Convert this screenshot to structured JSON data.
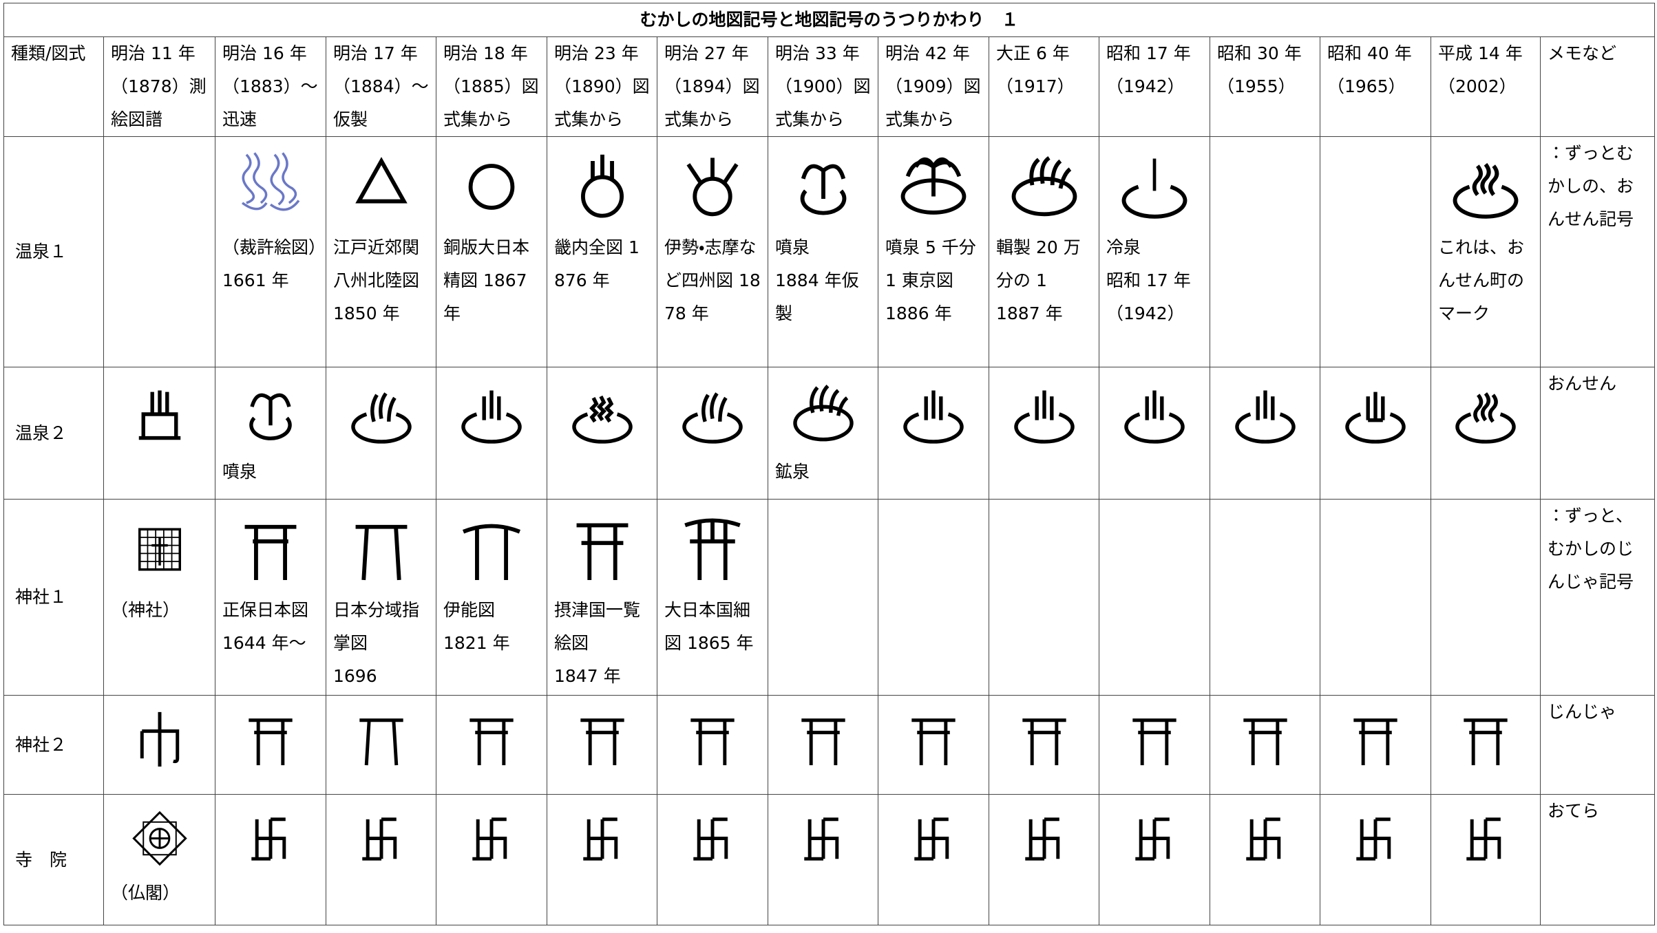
{
  "title": "むかしの地図記号と地図記号のうつりかわり　１",
  "header": [
    "種類/図式",
    "明治 11 年（1878）測絵図譜",
    "明治 16 年（1883）～迅速",
    "明治 17 年（1884）～仮製",
    "明治 18 年（1885）図式集から",
    "明治 23 年（1890）図式集から",
    "明治 27 年（1894）図式集から",
    "明治 33 年（1900）図式集から",
    "明治 42 年（1909）図式集から",
    "大正 6 年（1917）",
    "昭和 17 年（1942）",
    "昭和 30 年（1955）",
    "昭和 40 年（1965）",
    "平成 14 年（2002）",
    "メモなど"
  ],
  "rows": [
    {
      "label": "温泉１",
      "cells": [
        null,
        "（裁許絵図）1661 年",
        "江戸近郊関八州北陸図 1850 年",
        "銅版大日本精図 1867 年",
        "畿内全図 1876 年",
        "伊勢・志摩など四州図 1878 年",
        "噴泉\n1884 年仮製",
        "噴泉 5 千分 1 東京図\n1886 年",
        "輯製 20 万分の 1\n1887 年",
        "冷泉\n昭和 17 年\n（1942）",
        null,
        null,
        "これは、おんせん町のマーク"
      ],
      "memo": "：ずっとむかしの、おんせん記号"
    },
    {
      "label": "温泉２",
      "cells": [
        null,
        "噴泉",
        null,
        null,
        null,
        null,
        "鉱泉",
        null,
        null,
        null,
        null,
        null,
        null
      ],
      "memo": "おんせん"
    },
    {
      "label": "神社１",
      "cells": [
        "（神社）",
        "正保日本図\n1644 年～",
        "日本分域指掌図\n1696",
        "伊能図\n1821 年",
        "摂津国一覧絵図\n1847 年",
        "大日本国細図 1865 年",
        null,
        null,
        null,
        null,
        null,
        null,
        null
      ],
      "memo": "：ずっと、むかしのじんじゃ記号"
    },
    {
      "label": "神社２",
      "cells": [
        null,
        null,
        null,
        null,
        null,
        null,
        null,
        null,
        null,
        null,
        null,
        null,
        null
      ],
      "memo": "じんじゃ"
    },
    {
      "label": "寺　院",
      "cells": [
        "（仏閣）",
        null,
        null,
        null,
        null,
        null,
        null,
        null,
        null,
        null,
        null,
        null,
        null
      ],
      "memo": "おてら"
    }
  ]
}
